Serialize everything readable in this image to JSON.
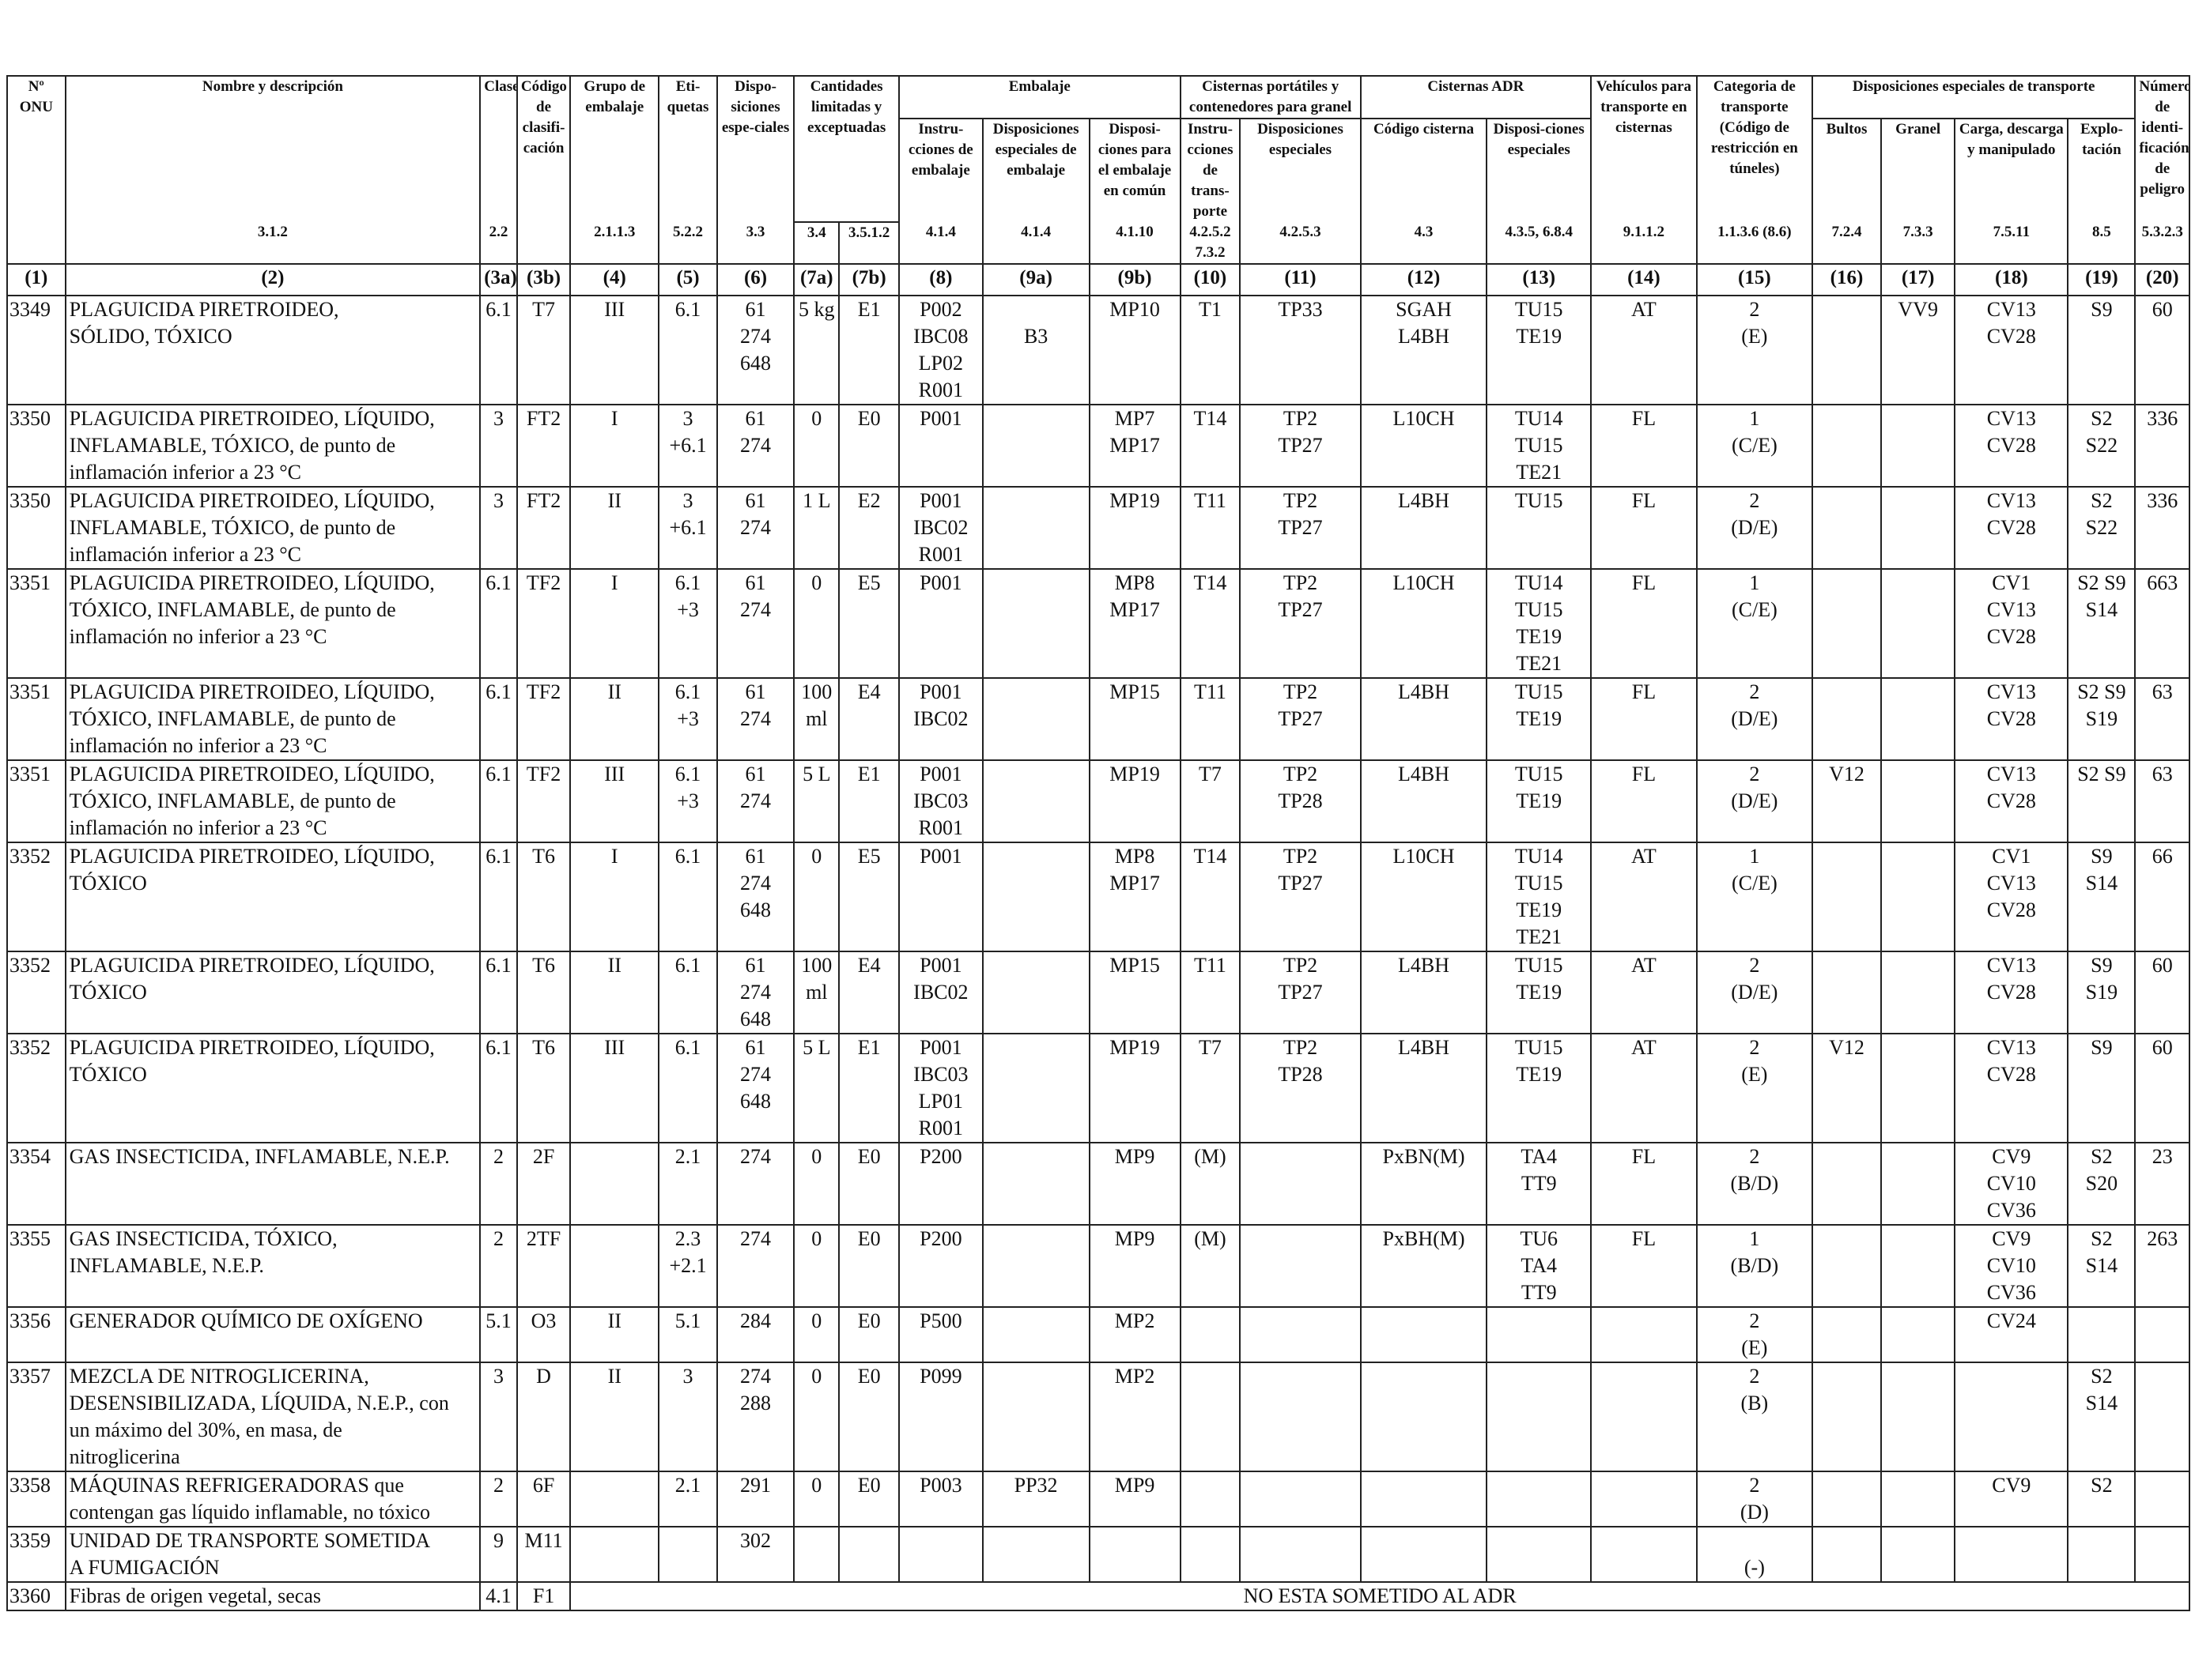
{
  "header": {
    "group": {
      "cantidades": "Cantidades limitadas y exceptuadas",
      "embalaje": "Embalaje",
      "cisternas_portatiles": "Cisternas portátiles y contenedores para granel",
      "cisternas_adr": "Cisternas ADR",
      "disposiciones_transporte": "Disposiciones especiales de transporte"
    },
    "labels": {
      "c1": "Nº ONU",
      "c2": "Nombre y descripción",
      "c3a": "Clase",
      "c3b": "Código de clasifi-cación",
      "c4": "Grupo de embalaje",
      "c5": "Eti-quetas",
      "c6": "Dispo-siciones espe-ciales",
      "c8": "Instru-cciones de embalaje",
      "c9a": "Disposiciones especiales de embalaje",
      "c9b": "Disposi-ciones para el embalaje en común",
      "c10": "Instru-cciones de trans-porte",
      "c11": "Disposiciones especiales",
      "c12": "Código cisterna",
      "c13": "Disposi-ciones especiales",
      "c14": "Vehículos para transporte en cisternas",
      "c15": "Categoria de transporte (Código de restricción en túneles)",
      "c16": "Bultos",
      "c17": "Granel",
      "c18": "Carga, descarga y manipulado",
      "c19": "Explo-tación",
      "c20": "Número de identi-ficación de peligro"
    },
    "refs": {
      "c2": "3.1.2",
      "c3a": "2.2",
      "c4": "2.1.1.3",
      "c5": "5.2.2",
      "c6": "3.3",
      "c7a": "3.4",
      "c7b": "3.5.1.2",
      "c8": "4.1.4",
      "c9a": "4.1.4",
      "c9b": "4.1.10",
      "c10": "4.2.5.2 7.3.2",
      "c11": "4.2.5.3",
      "c12": "4.3",
      "c13": "4.3.5, 6.8.4",
      "c14": "9.1.1.2",
      "c15": "1.1.3.6 (8.6)",
      "c16": "7.2.4",
      "c17": "7.3.3",
      "c18": "7.5.11",
      "c19": "8.5",
      "c20": "5.3.2.3"
    },
    "colnums": [
      "(1)",
      "(2)",
      "(3a)",
      "(3b)",
      "(4)",
      "(5)",
      "(6)",
      "(7a)",
      "(7b)",
      "(8)",
      "(9a)",
      "(9b)",
      "(10)",
      "(11)",
      "(12)",
      "(13)",
      "(14)",
      "(15)",
      "(16)",
      "(17)",
      "(18)",
      "(19)",
      "(20)"
    ]
  },
  "rows": [
    {
      "un": "3349",
      "name": "PLAGUICIDA PIRETROIDEO,\nSÓLIDO, TÓXICO",
      "c3a": "6.1",
      "c3b": "T7",
      "c4": "III",
      "c5": "6.1",
      "c6": "61\n274\n648",
      "c7a": "5 kg",
      "c7b": "E1",
      "c8": "P002\nIBC08\nLP02\nR001",
      "c9a": "\nB3",
      "c9b": "MP10",
      "c10": "T1",
      "c11": "TP33",
      "c12": "SGAH\nL4BH",
      "c13": "TU15\nTE19",
      "c14": "AT",
      "c15": "2\n(E)",
      "c16": "",
      "c17": "VV9",
      "c18": "CV13\nCV28",
      "c19": "S9",
      "c20": "60"
    },
    {
      "un": "3350",
      "name": "PLAGUICIDA PIRETROIDEO, LÍQUIDO,\nINFLAMABLE, TÓXICO, de punto de\ninflamación inferior a 23 °C",
      "c3a": "3",
      "c3b": "FT2",
      "c4": "I",
      "c5": "3\n+6.1",
      "c6": "61\n274",
      "c7a": "0",
      "c7b": "E0",
      "c8": "P001",
      "c9a": "",
      "c9b": "MP7\nMP17",
      "c10": "T14",
      "c11": "TP2\nTP27",
      "c12": "L10CH",
      "c13": "TU14\nTU15\nTE21",
      "c14": "FL",
      "c15": "1\n(C/E)",
      "c16": "",
      "c17": "",
      "c18": "CV13\nCV28",
      "c19": "S2\nS22",
      "c20": "336"
    },
    {
      "un": "3350",
      "name": "PLAGUICIDA PIRETROIDEO, LÍQUIDO,\nINFLAMABLE, TÓXICO, de punto de\ninflamación inferior a 23 °C",
      "c3a": "3",
      "c3b": "FT2",
      "c4": "II",
      "c5": "3\n+6.1",
      "c6": "61\n274",
      "c7a": "1 L",
      "c7b": "E2",
      "c8": "P001\nIBC02\nR001",
      "c9a": "",
      "c9b": "MP19",
      "c10": "T11",
      "c11": "TP2\nTP27",
      "c12": "L4BH",
      "c13": "TU15",
      "c14": "FL",
      "c15": "2\n(D/E)",
      "c16": "",
      "c17": "",
      "c18": "CV13\nCV28",
      "c19": "S2\nS22",
      "c20": "336"
    },
    {
      "un": "3351",
      "name": "PLAGUICIDA PIRETROIDEO, LÍQUIDO,\nTÓXICO, INFLAMABLE, de punto de\ninflamación no inferior a 23 °C",
      "c3a": "6.1",
      "c3b": "TF2",
      "c4": "I",
      "c5": "6.1\n+3",
      "c6": "61\n274",
      "c7a": "0",
      "c7b": "E5",
      "c8": "P001",
      "c9a": "",
      "c9b": "MP8\nMP17",
      "c10": "T14",
      "c11": "TP2\nTP27",
      "c12": "L10CH",
      "c13": "TU14\nTU15\nTE19\nTE21",
      "c14": "FL",
      "c15": "1\n(C/E)",
      "c16": "",
      "c17": "",
      "c18": "CV1\nCV13\nCV28",
      "c19": "S2 S9\nS14",
      "c20": "663"
    },
    {
      "un": "3351",
      "name": "PLAGUICIDA PIRETROIDEO, LÍQUIDO,\nTÓXICO, INFLAMABLE, de punto de\ninflamación no inferior a 23 °C",
      "c3a": "6.1",
      "c3b": "TF2",
      "c4": "II",
      "c5": "6.1\n+3",
      "c6": "61\n274",
      "c7a": "100\nml",
      "c7b": "E4",
      "c8": "P001\nIBC02",
      "c9a": "",
      "c9b": "MP15",
      "c10": "T11",
      "c11": "TP2\nTP27",
      "c12": "L4BH",
      "c13": "TU15\nTE19",
      "c14": "FL",
      "c15": "2\n(D/E)",
      "c16": "",
      "c17": "",
      "c18": "CV13\nCV28",
      "c19": "S2 S9\nS19",
      "c20": "63"
    },
    {
      "un": "3351",
      "name": "PLAGUICIDA PIRETROIDEO, LÍQUIDO,\nTÓXICO, INFLAMABLE, de punto de\ninflamación no inferior a 23 °C",
      "c3a": "6.1",
      "c3b": "TF2",
      "c4": "III",
      "c5": "6.1\n+3",
      "c6": "61\n274",
      "c7a": "5 L",
      "c7b": "E1",
      "c8": "P001\nIBC03\nR001",
      "c9a": "",
      "c9b": "MP19",
      "c10": "T7",
      "c11": "TP2\nTP28",
      "c12": "L4BH",
      "c13": "TU15\nTE19",
      "c14": "FL",
      "c15": "2\n(D/E)",
      "c16": "V12",
      "c17": "",
      "c18": "CV13\nCV28",
      "c19": "S2 S9",
      "c20": "63"
    },
    {
      "un": "3352",
      "name": "PLAGUICIDA PIRETROIDEO, LÍQUIDO,\nTÓXICO",
      "c3a": "6.1",
      "c3b": "T6",
      "c4": "I",
      "c5": "6.1",
      "c6": "61\n274\n648",
      "c7a": "0",
      "c7b": "E5",
      "c8": "P001",
      "c9a": "",
      "c9b": "MP8\nMP17",
      "c10": "T14",
      "c11": "TP2\nTP27",
      "c12": "L10CH",
      "c13": "TU14\nTU15\nTE19\nTE21",
      "c14": "AT",
      "c15": "1\n(C/E)",
      "c16": "",
      "c17": "",
      "c18": "CV1\nCV13\nCV28",
      "c19": "S9\nS14",
      "c20": "66"
    },
    {
      "un": "3352",
      "name": "PLAGUICIDA PIRETROIDEO, LÍQUIDO,\nTÓXICO",
      "c3a": "6.1",
      "c3b": "T6",
      "c4": "II",
      "c5": "6.1",
      "c6": "61\n274\n648",
      "c7a": "100\nml",
      "c7b": "E4",
      "c8": "P001\nIBC02",
      "c9a": "",
      "c9b": "MP15",
      "c10": "T11",
      "c11": "TP2\nTP27",
      "c12": "L4BH",
      "c13": "TU15\nTE19",
      "c14": "AT",
      "c15": "2\n(D/E)",
      "c16": "",
      "c17": "",
      "c18": "CV13\nCV28",
      "c19": "S9\nS19",
      "c20": "60"
    },
    {
      "un": "3352",
      "name": "PLAGUICIDA PIRETROIDEO, LÍQUIDO,\nTÓXICO",
      "c3a": "6.1",
      "c3b": "T6",
      "c4": "III",
      "c5": "6.1",
      "c6": "61\n274\n648",
      "c7a": "5 L",
      "c7b": "E1",
      "c8": "P001\nIBC03\nLP01\nR001",
      "c9a": "",
      "c9b": "MP19",
      "c10": "T7",
      "c11": "TP2\nTP28",
      "c12": "L4BH",
      "c13": "TU15\nTE19",
      "c14": "AT",
      "c15": "2\n(E)",
      "c16": "V12",
      "c17": "",
      "c18": "CV13\nCV28",
      "c19": "S9",
      "c20": "60"
    },
    {
      "un": "3354",
      "name": "GAS INSECTICIDA, INFLAMABLE, N.E.P.",
      "c3a": "2",
      "c3b": "2F",
      "c4": "",
      "c5": "2.1",
      "c6": "274",
      "c7a": "0",
      "c7b": "E0",
      "c8": "P200",
      "c9a": "",
      "c9b": "MP9",
      "c10": "(M)",
      "c11": "",
      "c12": "PxBN(M)",
      "c13": "TA4\nTT9",
      "c14": "FL",
      "c15": "2\n(B/D)",
      "c16": "",
      "c17": "",
      "c18": "CV9\nCV10\nCV36",
      "c19": "S2\nS20",
      "c20": "23"
    },
    {
      "un": "3355",
      "name": "GAS INSECTICIDA, TÓXICO,\nINFLAMABLE, N.E.P.",
      "c3a": "2",
      "c3b": "2TF",
      "c4": "",
      "c5": "2.3\n+2.1",
      "c6": "274",
      "c7a": "0",
      "c7b": "E0",
      "c8": "P200",
      "c9a": "",
      "c9b": "MP9",
      "c10": "(M)",
      "c11": "",
      "c12": "PxBH(M)",
      "c13": "TU6\nTA4\nTT9",
      "c14": "FL",
      "c15": "1\n(B/D)",
      "c16": "",
      "c17": "",
      "c18": "CV9\nCV10\nCV36",
      "c19": "S2\nS14",
      "c20": "263"
    },
    {
      "un": "3356",
      "name": "GENERADOR QUÍMICO DE OXÍGENO",
      "c3a": "5.1",
      "c3b": "O3",
      "c4": "II",
      "c5": "5.1",
      "c6": "284",
      "c7a": "0",
      "c7b": "E0",
      "c8": "P500",
      "c9a": "",
      "c9b": "MP2",
      "c10": "",
      "c11": "",
      "c12": "",
      "c13": "",
      "c14": "",
      "c15": "2\n(E)",
      "c16": "",
      "c17": "",
      "c18": "CV24",
      "c19": "",
      "c20": ""
    },
    {
      "un": "3357",
      "name": "MEZCLA DE NITROGLICERINA,\nDESENSIBILIZADA, LÍQUIDA, N.E.P., con\nun máximo del 30%, en masa, de\nnitroglicerina",
      "c3a": "3",
      "c3b": "D",
      "c4": "II",
      "c5": "3",
      "c6": "274\n288",
      "c7a": "0",
      "c7b": "E0",
      "c8": "P099",
      "c9a": "",
      "c9b": "MP2",
      "c10": "",
      "c11": "",
      "c12": "",
      "c13": "",
      "c14": "",
      "c15": "2\n(B)",
      "c16": "",
      "c17": "",
      "c18": "",
      "c19": "S2\nS14",
      "c20": ""
    },
    {
      "un": "3358",
      "name": "MÁQUINAS REFRIGERADORAS que\ncontengan gas líquido inflamable, no tóxico",
      "c3a": "2",
      "c3b": "6F",
      "c4": "",
      "c5": "2.1",
      "c6": "291",
      "c7a": "0",
      "c7b": "E0",
      "c8": "P003",
      "c9a": "PP32",
      "c9b": "MP9",
      "c10": "",
      "c11": "",
      "c12": "",
      "c13": "",
      "c14": "",
      "c15": "2\n(D)",
      "c16": "",
      "c17": "",
      "c18": "CV9",
      "c19": "S2",
      "c20": ""
    },
    {
      "un": "3359",
      "name": "UNIDAD DE TRANSPORTE SOMETIDA\nA FUMIGACIÓN",
      "c3a": "9",
      "c3b": "M11",
      "c4": "",
      "c5": "",
      "c6": "302",
      "c7a": "",
      "c7b": "",
      "c8": "",
      "c9a": "",
      "c9b": "",
      "c10": "",
      "c11": "",
      "c12": "",
      "c13": "",
      "c14": "",
      "c15": "\n(-)",
      "c16": "",
      "c17": "",
      "c18": "",
      "c19": "",
      "c20": ""
    }
  ],
  "last_row": {
    "un": "3360",
    "name": "Fibras de origen vegetal, secas",
    "c3a": "4.1",
    "c3b": "F1",
    "note": "NO ESTA SOMETIDO AL ADR"
  }
}
